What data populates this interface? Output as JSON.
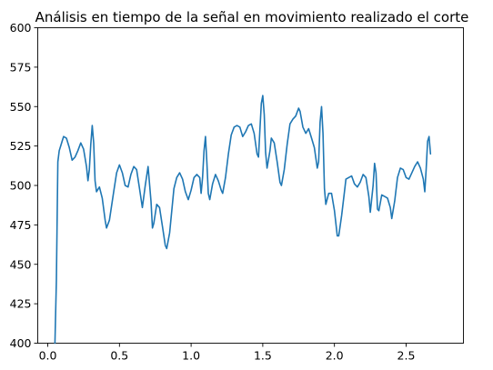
{
  "chart_data": {
    "type": "line",
    "title": "Análisis en tiempo de la señal en movimiento realizado el corte",
    "xlabel": "",
    "ylabel": "",
    "xlim": [
      -0.07,
      2.9
    ],
    "ylim": [
      400,
      600
    ],
    "x_ticks": [
      0.0,
      0.5,
      1.0,
      1.5,
      2.0,
      2.5
    ],
    "x_tick_labels": [
      "0.0",
      "0.5",
      "1.0",
      "1.5",
      "2.0",
      "2.5"
    ],
    "y_ticks": [
      400,
      425,
      450,
      475,
      500,
      525,
      550,
      575,
      600
    ],
    "y_tick_labels": [
      "400",
      "425",
      "450",
      "475",
      "500",
      "525",
      "550",
      "575",
      "600"
    ],
    "grid": false,
    "legend": "none",
    "series": [
      {
        "color": "#1f77b4",
        "points": [
          [
            0.05,
            400
          ],
          [
            0.06,
            440
          ],
          [
            0.07,
            515
          ],
          [
            0.08,
            522
          ],
          [
            0.09,
            525
          ],
          [
            0.1,
            528
          ],
          [
            0.11,
            531
          ],
          [
            0.13,
            530
          ],
          [
            0.15,
            524
          ],
          [
            0.17,
            516
          ],
          [
            0.19,
            518
          ],
          [
            0.21,
            522
          ],
          [
            0.23,
            527
          ],
          [
            0.25,
            523
          ],
          [
            0.27,
            512
          ],
          [
            0.28,
            503
          ],
          [
            0.29,
            510
          ],
          [
            0.3,
            526
          ],
          [
            0.31,
            538
          ],
          [
            0.32,
            527
          ],
          [
            0.33,
            503
          ],
          [
            0.34,
            496
          ],
          [
            0.36,
            499
          ],
          [
            0.38,
            492
          ],
          [
            0.4,
            478
          ],
          [
            0.41,
            473
          ],
          [
            0.43,
            478
          ],
          [
            0.46,
            496
          ],
          [
            0.48,
            508
          ],
          [
            0.5,
            513
          ],
          [
            0.52,
            508
          ],
          [
            0.54,
            500
          ],
          [
            0.56,
            499
          ],
          [
            0.58,
            507
          ],
          [
            0.6,
            512
          ],
          [
            0.62,
            510
          ],
          [
            0.64,
            498
          ],
          [
            0.66,
            486
          ],
          [
            0.68,
            500
          ],
          [
            0.7,
            512
          ],
          [
            0.72,
            490
          ],
          [
            0.73,
            473
          ],
          [
            0.74,
            476
          ],
          [
            0.76,
            488
          ],
          [
            0.78,
            486
          ],
          [
            0.8,
            474
          ],
          [
            0.82,
            462
          ],
          [
            0.83,
            460
          ],
          [
            0.85,
            470
          ],
          [
            0.88,
            498
          ],
          [
            0.9,
            505
          ],
          [
            0.92,
            508
          ],
          [
            0.94,
            504
          ],
          [
            0.96,
            496
          ],
          [
            0.98,
            491
          ],
          [
            1.0,
            497
          ],
          [
            1.02,
            505
          ],
          [
            1.04,
            507
          ],
          [
            1.06,
            505
          ],
          [
            1.07,
            495
          ],
          [
            1.08,
            505
          ],
          [
            1.09,
            522
          ],
          [
            1.1,
            531
          ],
          [
            1.11,
            515
          ],
          [
            1.12,
            495
          ],
          [
            1.13,
            491
          ],
          [
            1.15,
            501
          ],
          [
            1.17,
            507
          ],
          [
            1.19,
            503
          ],
          [
            1.21,
            497
          ],
          [
            1.22,
            495
          ],
          [
            1.24,
            505
          ],
          [
            1.26,
            520
          ],
          [
            1.28,
            532
          ],
          [
            1.3,
            537
          ],
          [
            1.32,
            538
          ],
          [
            1.34,
            537
          ],
          [
            1.36,
            531
          ],
          [
            1.38,
            534
          ],
          [
            1.4,
            538
          ],
          [
            1.42,
            539
          ],
          [
            1.44,
            533
          ],
          [
            1.46,
            520
          ],
          [
            1.47,
            518
          ],
          [
            1.48,
            535
          ],
          [
            1.49,
            552
          ],
          [
            1.5,
            557
          ],
          [
            1.51,
            545
          ],
          [
            1.52,
            521
          ],
          [
            1.53,
            511
          ],
          [
            1.55,
            522
          ],
          [
            1.56,
            530
          ],
          [
            1.58,
            527
          ],
          [
            1.6,
            515
          ],
          [
            1.62,
            502
          ],
          [
            1.63,
            500
          ],
          [
            1.65,
            510
          ],
          [
            1.67,
            526
          ],
          [
            1.69,
            539
          ],
          [
            1.71,
            542
          ],
          [
            1.73,
            544
          ],
          [
            1.75,
            549
          ],
          [
            1.76,
            547
          ],
          [
            1.78,
            537
          ],
          [
            1.8,
            533
          ],
          [
            1.82,
            536
          ],
          [
            1.84,
            530
          ],
          [
            1.86,
            524
          ],
          [
            1.88,
            511
          ],
          [
            1.89,
            515
          ],
          [
            1.9,
            540
          ],
          [
            1.91,
            550
          ],
          [
            1.92,
            533
          ],
          [
            1.93,
            498
          ],
          [
            1.94,
            488
          ],
          [
            1.96,
            495
          ],
          [
            1.98,
            495
          ],
          [
            2.0,
            484
          ],
          [
            2.02,
            468
          ],
          [
            2.03,
            468
          ],
          [
            2.05,
            481
          ],
          [
            2.07,
            496
          ],
          [
            2.08,
            504
          ],
          [
            2.1,
            505
          ],
          [
            2.12,
            506
          ],
          [
            2.14,
            501
          ],
          [
            2.16,
            499
          ],
          [
            2.18,
            502
          ],
          [
            2.2,
            507
          ],
          [
            2.22,
            505
          ],
          [
            2.24,
            493
          ],
          [
            2.25,
            483
          ],
          [
            2.27,
            500
          ],
          [
            2.28,
            514
          ],
          [
            2.29,
            508
          ],
          [
            2.3,
            485
          ],
          [
            2.31,
            484
          ],
          [
            2.33,
            494
          ],
          [
            2.35,
            493
          ],
          [
            2.37,
            492
          ],
          [
            2.39,
            486
          ],
          [
            2.4,
            479
          ],
          [
            2.42,
            490
          ],
          [
            2.44,
            505
          ],
          [
            2.46,
            511
          ],
          [
            2.48,
            510
          ],
          [
            2.5,
            505
          ],
          [
            2.52,
            504
          ],
          [
            2.54,
            508
          ],
          [
            2.56,
            512
          ],
          [
            2.58,
            515
          ],
          [
            2.6,
            511
          ],
          [
            2.62,
            504
          ],
          [
            2.63,
            496
          ],
          [
            2.64,
            510
          ],
          [
            2.65,
            528
          ],
          [
            2.66,
            531
          ],
          [
            2.67,
            520
          ]
        ]
      }
    ]
  }
}
